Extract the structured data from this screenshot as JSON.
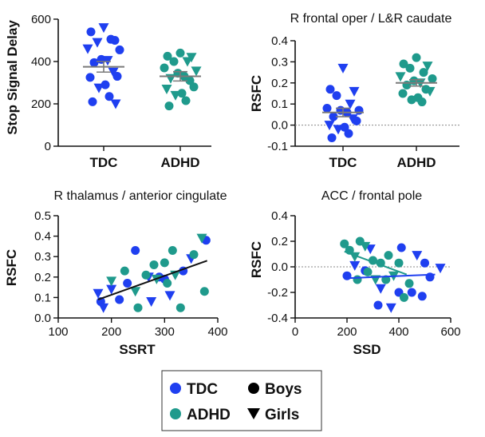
{
  "colors": {
    "tdc": "#1f3ff0",
    "adhd": "#1f9a8c",
    "axis": "#111111",
    "ref": "#8a8a8a",
    "mean": "#7a7a7a"
  },
  "legend": {
    "tdc_label": "TDC",
    "adhd_label": "ADHD",
    "boys_label": "Boys",
    "girls_label": "Girls",
    "boys_marker": "circle",
    "girls_marker": "triangle-down"
  },
  "chart_data": [
    {
      "id": "ssd-by-group",
      "type": "scatter",
      "title": "",
      "ylabel": "Stop Signal Delay",
      "xlabel": "",
      "categories": [
        "TDC",
        "ADHD"
      ],
      "ylim": [
        0,
        600
      ],
      "yticks": [
        0,
        200,
        400,
        600
      ],
      "groups": [
        {
          "name": "TDC",
          "mean": 375,
          "sem": 25,
          "points": [
            {
              "y": 560,
              "sex": "girl"
            },
            {
              "y": 540,
              "sex": "boy"
            },
            {
              "y": 500,
              "sex": "boy"
            },
            {
              "y": 490,
              "sex": "girl"
            },
            {
              "y": 505,
              "sex": "boy"
            },
            {
              "y": 460,
              "sex": "girl"
            },
            {
              "y": 455,
              "sex": "boy"
            },
            {
              "y": 410,
              "sex": "boy"
            },
            {
              "y": 405,
              "sex": "girl"
            },
            {
              "y": 395,
              "sex": "boy"
            },
            {
              "y": 350,
              "sex": "girl"
            },
            {
              "y": 330,
              "sex": "boy"
            },
            {
              "y": 325,
              "sex": "boy"
            },
            {
              "y": 290,
              "sex": "boy"
            },
            {
              "y": 275,
              "sex": "girl"
            },
            {
              "y": 235,
              "sex": "boy"
            },
            {
              "y": 210,
              "sex": "boy"
            },
            {
              "y": 200,
              "sex": "girl"
            }
          ]
        },
        {
          "name": "ADHD",
          "mean": 330,
          "sem": 22,
          "points": [
            {
              "y": 440,
              "sex": "boy"
            },
            {
              "y": 425,
              "sex": "boy"
            },
            {
              "y": 420,
              "sex": "girl"
            },
            {
              "y": 400,
              "sex": "boy"
            },
            {
              "y": 400,
              "sex": "girl"
            },
            {
              "y": 370,
              "sex": "boy"
            },
            {
              "y": 355,
              "sex": "girl"
            },
            {
              "y": 345,
              "sex": "boy"
            },
            {
              "y": 330,
              "sex": "boy"
            },
            {
              "y": 320,
              "sex": "girl"
            },
            {
              "y": 310,
              "sex": "boy"
            },
            {
              "y": 280,
              "sex": "boy"
            },
            {
              "y": 270,
              "sex": "girl"
            },
            {
              "y": 250,
              "sex": "boy"
            },
            {
              "y": 240,
              "sex": "girl"
            },
            {
              "y": 215,
              "sex": "boy"
            },
            {
              "y": 190,
              "sex": "boy"
            }
          ]
        }
      ]
    },
    {
      "id": "rsfc-frontal-caudate",
      "type": "scatter",
      "title": "R frontal oper / L&R caudate",
      "ylabel": "RSFC",
      "xlabel": "",
      "categories": [
        "TDC",
        "ADHD"
      ],
      "ylim": [
        -0.1,
        0.4
      ],
      "yticks": [
        -0.1,
        0.0,
        0.1,
        0.2,
        0.3,
        0.4
      ],
      "refline": 0,
      "groups": [
        {
          "name": "TDC",
          "mean": 0.06,
          "sem": 0.02,
          "points": [
            {
              "y": 0.27,
              "sex": "girl"
            },
            {
              "y": 0.17,
              "sex": "boy"
            },
            {
              "y": 0.16,
              "sex": "girl"
            },
            {
              "y": 0.14,
              "sex": "boy"
            },
            {
              "y": 0.1,
              "sex": "girl"
            },
            {
              "y": 0.08,
              "sex": "boy"
            },
            {
              "y": 0.07,
              "sex": "boy"
            },
            {
              "y": 0.07,
              "sex": "boy"
            },
            {
              "y": 0.06,
              "sex": "boy"
            },
            {
              "y": 0.04,
              "sex": "boy"
            },
            {
              "y": 0.03,
              "sex": "girl"
            },
            {
              "y": 0.02,
              "sex": "boy"
            },
            {
              "y": 0.0,
              "sex": "girl"
            },
            {
              "y": -0.01,
              "sex": "boy"
            },
            {
              "y": -0.02,
              "sex": "girl"
            },
            {
              "y": -0.04,
              "sex": "boy"
            },
            {
              "y": -0.06,
              "sex": "boy"
            }
          ]
        },
        {
          "name": "ADHD",
          "mean": 0.2,
          "sem": 0.015,
          "points": [
            {
              "y": 0.32,
              "sex": "boy"
            },
            {
              "y": 0.29,
              "sex": "boy"
            },
            {
              "y": 0.28,
              "sex": "girl"
            },
            {
              "y": 0.27,
              "sex": "boy"
            },
            {
              "y": 0.25,
              "sex": "boy"
            },
            {
              "y": 0.23,
              "sex": "girl"
            },
            {
              "y": 0.22,
              "sex": "boy"
            },
            {
              "y": 0.21,
              "sex": "boy"
            },
            {
              "y": 0.2,
              "sex": "girl"
            },
            {
              "y": 0.19,
              "sex": "boy"
            },
            {
              "y": 0.17,
              "sex": "boy"
            },
            {
              "y": 0.16,
              "sex": "girl"
            },
            {
              "y": 0.15,
              "sex": "boy"
            },
            {
              "y": 0.13,
              "sex": "boy"
            },
            {
              "y": 0.12,
              "sex": "boy"
            },
            {
              "y": 0.11,
              "sex": "boy"
            }
          ]
        }
      ]
    },
    {
      "id": "thalamus-acc-vs-ssrt",
      "type": "scatter",
      "title": "R thalamus / anterior cingulate",
      "ylabel": "RSFC",
      "xlabel": "SSRT",
      "xlim": [
        100,
        400
      ],
      "xticks": [
        100,
        200,
        300,
        400
      ],
      "ylim": [
        0.0,
        0.5
      ],
      "yticks": [
        0.0,
        0.1,
        0.2,
        0.3,
        0.4,
        0.5
      ],
      "fits": [
        {
          "group": "All",
          "color_key": "axis",
          "x": [
            175,
            380
          ],
          "y": [
            0.09,
            0.28
          ]
        }
      ],
      "points": [
        {
          "x": 175,
          "y": 0.12,
          "group": "TDC",
          "sex": "girl"
        },
        {
          "x": 180,
          "y": 0.08,
          "group": "TDC",
          "sex": "boy"
        },
        {
          "x": 185,
          "y": 0.05,
          "group": "TDC",
          "sex": "girl"
        },
        {
          "x": 200,
          "y": 0.14,
          "group": "TDC",
          "sex": "girl"
        },
        {
          "x": 215,
          "y": 0.09,
          "group": "TDC",
          "sex": "boy"
        },
        {
          "x": 230,
          "y": 0.17,
          "group": "TDC",
          "sex": "boy"
        },
        {
          "x": 245,
          "y": 0.33,
          "group": "TDC",
          "sex": "boy"
        },
        {
          "x": 270,
          "y": 0.2,
          "group": "TDC",
          "sex": "girl"
        },
        {
          "x": 275,
          "y": 0.08,
          "group": "TDC",
          "sex": "girl"
        },
        {
          "x": 290,
          "y": 0.2,
          "group": "TDC",
          "sex": "boy"
        },
        {
          "x": 300,
          "y": 0.19,
          "group": "TDC",
          "sex": "boy"
        },
        {
          "x": 310,
          "y": 0.11,
          "group": "TDC",
          "sex": "girl"
        },
        {
          "x": 335,
          "y": 0.23,
          "group": "TDC",
          "sex": "boy"
        },
        {
          "x": 350,
          "y": 0.29,
          "group": "TDC",
          "sex": "girl"
        },
        {
          "x": 378,
          "y": 0.38,
          "group": "TDC",
          "sex": "boy"
        },
        {
          "x": 200,
          "y": 0.18,
          "group": "ADHD",
          "sex": "girl"
        },
        {
          "x": 225,
          "y": 0.23,
          "group": "ADHD",
          "sex": "boy"
        },
        {
          "x": 245,
          "y": 0.13,
          "group": "ADHD",
          "sex": "girl"
        },
        {
          "x": 250,
          "y": 0.05,
          "group": "ADHD",
          "sex": "boy"
        },
        {
          "x": 265,
          "y": 0.21,
          "group": "ADHD",
          "sex": "boy"
        },
        {
          "x": 280,
          "y": 0.26,
          "group": "ADHD",
          "sex": "boy"
        },
        {
          "x": 285,
          "y": 0.19,
          "group": "ADHD",
          "sex": "girl"
        },
        {
          "x": 300,
          "y": 0.27,
          "group": "ADHD",
          "sex": "boy"
        },
        {
          "x": 305,
          "y": 0.17,
          "group": "ADHD",
          "sex": "boy"
        },
        {
          "x": 315,
          "y": 0.33,
          "group": "ADHD",
          "sex": "boy"
        },
        {
          "x": 320,
          "y": 0.21,
          "group": "ADHD",
          "sex": "girl"
        },
        {
          "x": 330,
          "y": 0.05,
          "group": "ADHD",
          "sex": "boy"
        },
        {
          "x": 355,
          "y": 0.31,
          "group": "ADHD",
          "sex": "boy"
        },
        {
          "x": 370,
          "y": 0.39,
          "group": "ADHD",
          "sex": "girl"
        },
        {
          "x": 375,
          "y": 0.13,
          "group": "ADHD",
          "sex": "boy"
        }
      ]
    },
    {
      "id": "acc-frontal-pole-vs-ssd",
      "type": "scatter",
      "title": "ACC / frontal pole",
      "ylabel": "RSFC",
      "xlabel": "SSD",
      "xlim": [
        0,
        600
      ],
      "xticks": [
        0,
        200,
        400,
        600
      ],
      "ylim": [
        -0.4,
        0.4
      ],
      "yticks": [
        -0.4,
        -0.2,
        0.0,
        0.2,
        0.4
      ],
      "refline": 0,
      "fits": [
        {
          "group": "TDC",
          "color_key": "tdc",
          "x": [
            190,
            540
          ],
          "y": [
            -0.09,
            -0.06
          ]
        },
        {
          "group": "ADHD",
          "color_key": "adhd",
          "x": [
            190,
            430
          ],
          "y": [
            0.12,
            -0.06
          ]
        }
      ],
      "points": [
        {
          "x": 200,
          "y": -0.07,
          "group": "TDC",
          "sex": "boy"
        },
        {
          "x": 230,
          "y": 0.01,
          "group": "TDC",
          "sex": "girl"
        },
        {
          "x": 270,
          "y": -0.03,
          "group": "TDC",
          "sex": "boy"
        },
        {
          "x": 290,
          "y": 0.14,
          "group": "TDC",
          "sex": "girl"
        },
        {
          "x": 320,
          "y": -0.3,
          "group": "TDC",
          "sex": "boy"
        },
        {
          "x": 330,
          "y": -0.17,
          "group": "TDC",
          "sex": "girl"
        },
        {
          "x": 370,
          "y": -0.32,
          "group": "TDC",
          "sex": "girl"
        },
        {
          "x": 400,
          "y": -0.2,
          "group": "TDC",
          "sex": "boy"
        },
        {
          "x": 410,
          "y": 0.15,
          "group": "TDC",
          "sex": "boy"
        },
        {
          "x": 450,
          "y": -0.2,
          "group": "TDC",
          "sex": "boy"
        },
        {
          "x": 470,
          "y": 0.09,
          "group": "TDC",
          "sex": "girl"
        },
        {
          "x": 490,
          "y": -0.23,
          "group": "TDC",
          "sex": "boy"
        },
        {
          "x": 500,
          "y": 0.03,
          "group": "TDC",
          "sex": "boy"
        },
        {
          "x": 520,
          "y": -0.08,
          "group": "TDC",
          "sex": "boy"
        },
        {
          "x": 560,
          "y": -0.01,
          "group": "TDC",
          "sex": "girl"
        },
        {
          "x": 190,
          "y": 0.18,
          "group": "ADHD",
          "sex": "boy"
        },
        {
          "x": 210,
          "y": 0.13,
          "group": "ADHD",
          "sex": "boy"
        },
        {
          "x": 230,
          "y": 0.08,
          "group": "ADHD",
          "sex": "girl"
        },
        {
          "x": 240,
          "y": -0.1,
          "group": "ADHD",
          "sex": "boy"
        },
        {
          "x": 250,
          "y": 0.2,
          "group": "ADHD",
          "sex": "boy"
        },
        {
          "x": 270,
          "y": 0.16,
          "group": "ADHD",
          "sex": "girl"
        },
        {
          "x": 280,
          "y": -0.04,
          "group": "ADHD",
          "sex": "boy"
        },
        {
          "x": 300,
          "y": 0.05,
          "group": "ADHD",
          "sex": "boy"
        },
        {
          "x": 310,
          "y": -0.1,
          "group": "ADHD",
          "sex": "girl"
        },
        {
          "x": 330,
          "y": 0.03,
          "group": "ADHD",
          "sex": "boy"
        },
        {
          "x": 350,
          "y": -0.1,
          "group": "ADHD",
          "sex": "boy"
        },
        {
          "x": 360,
          "y": 0.09,
          "group": "ADHD",
          "sex": "boy"
        },
        {
          "x": 380,
          "y": -0.07,
          "group": "ADHD",
          "sex": "girl"
        },
        {
          "x": 400,
          "y": 0.03,
          "group": "ADHD",
          "sex": "boy"
        },
        {
          "x": 420,
          "y": -0.24,
          "group": "ADHD",
          "sex": "boy"
        },
        {
          "x": 440,
          "y": -0.13,
          "group": "ADHD",
          "sex": "boy"
        }
      ]
    }
  ]
}
